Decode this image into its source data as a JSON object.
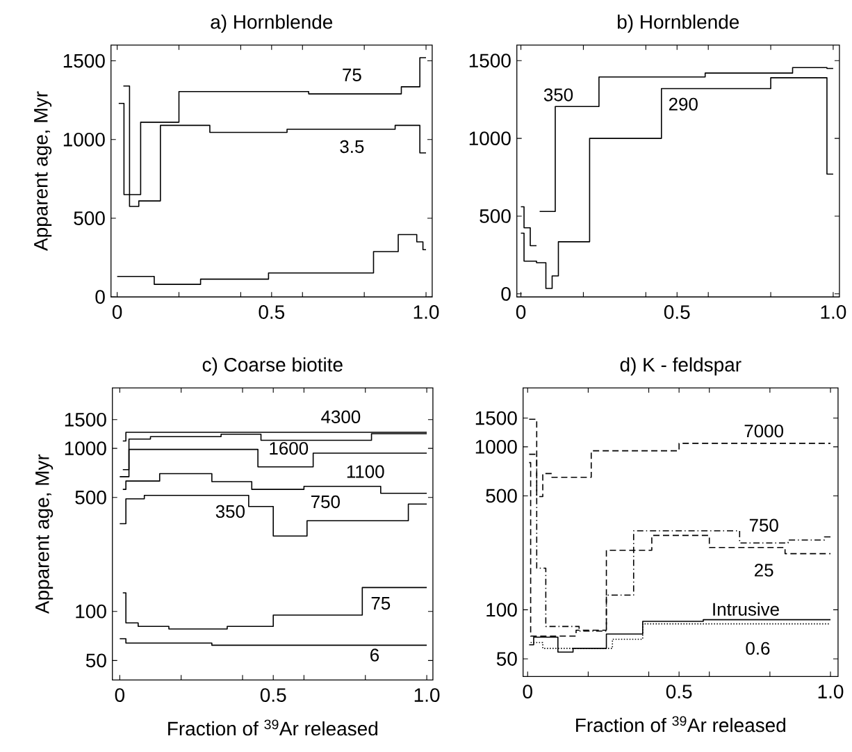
{
  "chart_data": [
    {
      "type": "step",
      "title": "a) Hornblende",
      "ylabel": "Apparent age, Myr",
      "xlim": [
        -0.02,
        1.02
      ],
      "ylim": [
        0,
        1600
      ],
      "xticks": [
        {
          "value": 0,
          "label": "0"
        },
        {
          "value": 0.2,
          "label": null
        },
        {
          "value": 0.4,
          "label": null
        },
        {
          "value": 0.5,
          "label": "0.5"
        },
        {
          "value": 0.6,
          "label": null
        },
        {
          "value": 0.8,
          "label": null
        },
        {
          "value": 1.0,
          "label": "1.0"
        }
      ],
      "yticks": [
        0,
        500,
        1000,
        1500
      ],
      "series": [
        {
          "name": "75",
          "color": "#000000",
          "x": [
            0.005,
            0.022,
            0.076,
            0.2,
            0.44,
            0.62,
            0.92,
            0.98,
            1.0
          ],
          "values": [
            1230,
            650,
            1110,
            1305,
            1305,
            1290,
            1335,
            1520,
            1520
          ]
        },
        {
          "name": "3.5",
          "color": "#000000",
          "x": [
            0.02,
            0.04,
            0.07,
            0.14,
            0.3,
            0.55,
            0.9,
            0.98,
            1.0
          ],
          "values": [
            1340,
            575,
            610,
            1090,
            1045,
            1065,
            1090,
            915,
            915
          ]
        },
        {
          "color": "#000000",
          "x": [
            0.0,
            0.12,
            0.27,
            0.49,
            0.83,
            0.91,
            0.97,
            0.99,
            1.0
          ],
          "values": [
            130,
            80,
            113,
            152,
            288,
            396,
            350,
            300,
            300
          ]
        }
      ]
    },
    {
      "type": "step",
      "title": "b) Hornblende",
      "xlim": [
        -0.013,
        1.02
      ],
      "ylim": [
        -20,
        1600
      ],
      "xticks": [
        {
          "value": 0,
          "label": "0"
        },
        {
          "value": 0.2,
          "label": null
        },
        {
          "value": 0.4,
          "label": null
        },
        {
          "value": 0.5,
          "label": "0.5"
        },
        {
          "value": 0.6,
          "label": null
        },
        {
          "value": 0.8,
          "label": null
        },
        {
          "value": 1.0,
          "label": "1.0"
        }
      ],
      "yticks": [
        0,
        500,
        1000,
        1500
      ],
      "series": [
        {
          "name": "350",
          "color": "#000000",
          "x": [
            0.06,
            0.11,
            0.25,
            0.59,
            0.87,
            0.98,
            1.0
          ],
          "values": [
            530,
            1205,
            1395,
            1420,
            1455,
            1450,
            1450
          ]
        },
        {
          "name": "290",
          "color": "#000000",
          "x": [
            0.0,
            0.01,
            0.05,
            0.08,
            0.1,
            0.12,
            0.22,
            0.45,
            0.8,
            0.98,
            1.0
          ],
          "values": [
            390,
            210,
            200,
            35,
            115,
            335,
            1000,
            1320,
            1390,
            770,
            770
          ]
        },
        {
          "color": "#000000",
          "x": [
            0.0,
            0.01,
            0.03,
            0.05
          ],
          "values": [
            560,
            425,
            310,
            310
          ]
        }
      ]
    },
    {
      "type": "step",
      "title": "c) Coarse biotite",
      "ylabel": "Apparent age, Myr",
      "xlabel": "Fraction of $^{39}$Ar released",
      "log": "y",
      "xlim": [
        -0.024,
        1.02
      ],
      "ylim": [
        38,
        2350
      ],
      "xticks": [
        {
          "value": 0,
          "label": "0"
        },
        {
          "value": 0.2,
          "label": null
        },
        {
          "value": 0.4,
          "label": null
        },
        {
          "value": 0.5,
          "label": "0.5"
        },
        {
          "value": 0.6,
          "label": null
        },
        {
          "value": 0.8,
          "label": null
        },
        {
          "value": 1.0,
          "label": "1.0"
        }
      ],
      "yticks": [
        50,
        100,
        500,
        1000,
        1500
      ],
      "series": [
        {
          "name": "4300",
          "color": "#000000",
          "x": [
            0.01,
            0.02,
            1.0
          ],
          "values": [
            1110,
            1255,
            1255
          ]
        },
        {
          "name": "1600",
          "color": "#000000",
          "x": [
            0.01,
            0.03,
            0.1,
            0.33,
            0.46,
            0.82,
            1.0
          ],
          "values": [
            740,
            1140,
            1180,
            1220,
            1120,
            1230,
            1230
          ]
        },
        {
          "name": "1100",
          "color": "#000000",
          "x": [
            0.0,
            0.03,
            0.45,
            0.63,
            1.0
          ],
          "values": [
            670,
            985,
            770,
            935,
            935
          ]
        },
        {
          "name": "750",
          "color": "#000000",
          "x": [
            0.01,
            0.02,
            0.13,
            0.3,
            0.43,
            0.6,
            0.85,
            1.0
          ],
          "values": [
            560,
            630,
            700,
            625,
            560,
            585,
            530,
            530
          ]
        },
        {
          "name": "350",
          "color": "#000000",
          "x": [
            0.0,
            0.02,
            0.08,
            0.42,
            0.5,
            0.61,
            0.94,
            1.0
          ],
          "values": [
            345,
            490,
            515,
            440,
            290,
            360,
            455,
            455
          ]
        },
        {
          "name": "75",
          "color": "#000000",
          "x": [
            0.01,
            0.02,
            0.06,
            0.16,
            0.35,
            0.5,
            0.79,
            1.0
          ],
          "values": [
            130,
            85,
            81,
            78,
            81,
            95,
            140,
            140
          ]
        },
        {
          "name": "6",
          "color": "#000000",
          "x": [
            0.0,
            0.02,
            0.3,
            1.0
          ],
          "values": [
            68,
            64,
            62,
            62
          ]
        }
      ]
    },
    {
      "type": "step",
      "title": "d) K - feldspar",
      "xlabel": "Fraction of $^{39}$Ar released",
      "log": "y",
      "xlim": [
        -0.015,
        1.025
      ],
      "ylim": [
        39,
        2300
      ],
      "xticks": [
        {
          "value": 0,
          "label": "0"
        },
        {
          "value": 0.2,
          "label": null
        },
        {
          "value": 0.4,
          "label": null
        },
        {
          "value": 0.5,
          "label": "0.5"
        },
        {
          "value": 0.6,
          "label": null
        },
        {
          "value": 0.8,
          "label": null
        },
        {
          "value": 1.0,
          "label": "1.0"
        }
      ],
      "yticks": [
        50,
        100,
        500,
        1000,
        1500
      ],
      "series": [
        {
          "name": "7000",
          "color": "#000000",
          "line_style": "dashed",
          "x": [
            0.005,
            0.03,
            0.05,
            0.08,
            0.21,
            0.5,
            1.0
          ],
          "values": [
            1475,
            495,
            685,
            650,
            945,
            1050,
            1050
          ]
        },
        {
          "name": "750",
          "color": "#000000",
          "line_style": "dashdotted",
          "x": [
            0.005,
            0.03,
            0.06,
            0.17,
            0.26,
            0.35,
            0.7,
            0.86,
            0.98,
            1.0
          ],
          "values": [
            900,
            180,
            79,
            74,
            123,
            305,
            257,
            268,
            280,
            280
          ]
        },
        {
          "name": "25",
          "color": "#000000",
          "line_style": "dashed",
          "x": [
            0.005,
            0.01,
            0.16,
            0.26,
            0.41,
            0.6,
            0.85,
            1.0
          ],
          "values": [
            800,
            69,
            75,
            232,
            286,
            241,
            221,
            221
          ]
        },
        {
          "name": "Intrusive",
          "color": "#000000",
          "x": [
            0.005,
            0.02,
            0.1,
            0.15,
            0.26,
            0.38,
            0.58,
            1.0
          ],
          "values": [
            61,
            68,
            55,
            58,
            71,
            85,
            87,
            87
          ]
        },
        {
          "name": "0.6",
          "color": "#000000",
          "line_style": "dotted",
          "x": [
            0.01,
            0.05,
            0.28,
            0.38,
            1.0
          ],
          "values": [
            63,
            58,
            66,
            82,
            82
          ]
        }
      ]
    }
  ]
}
